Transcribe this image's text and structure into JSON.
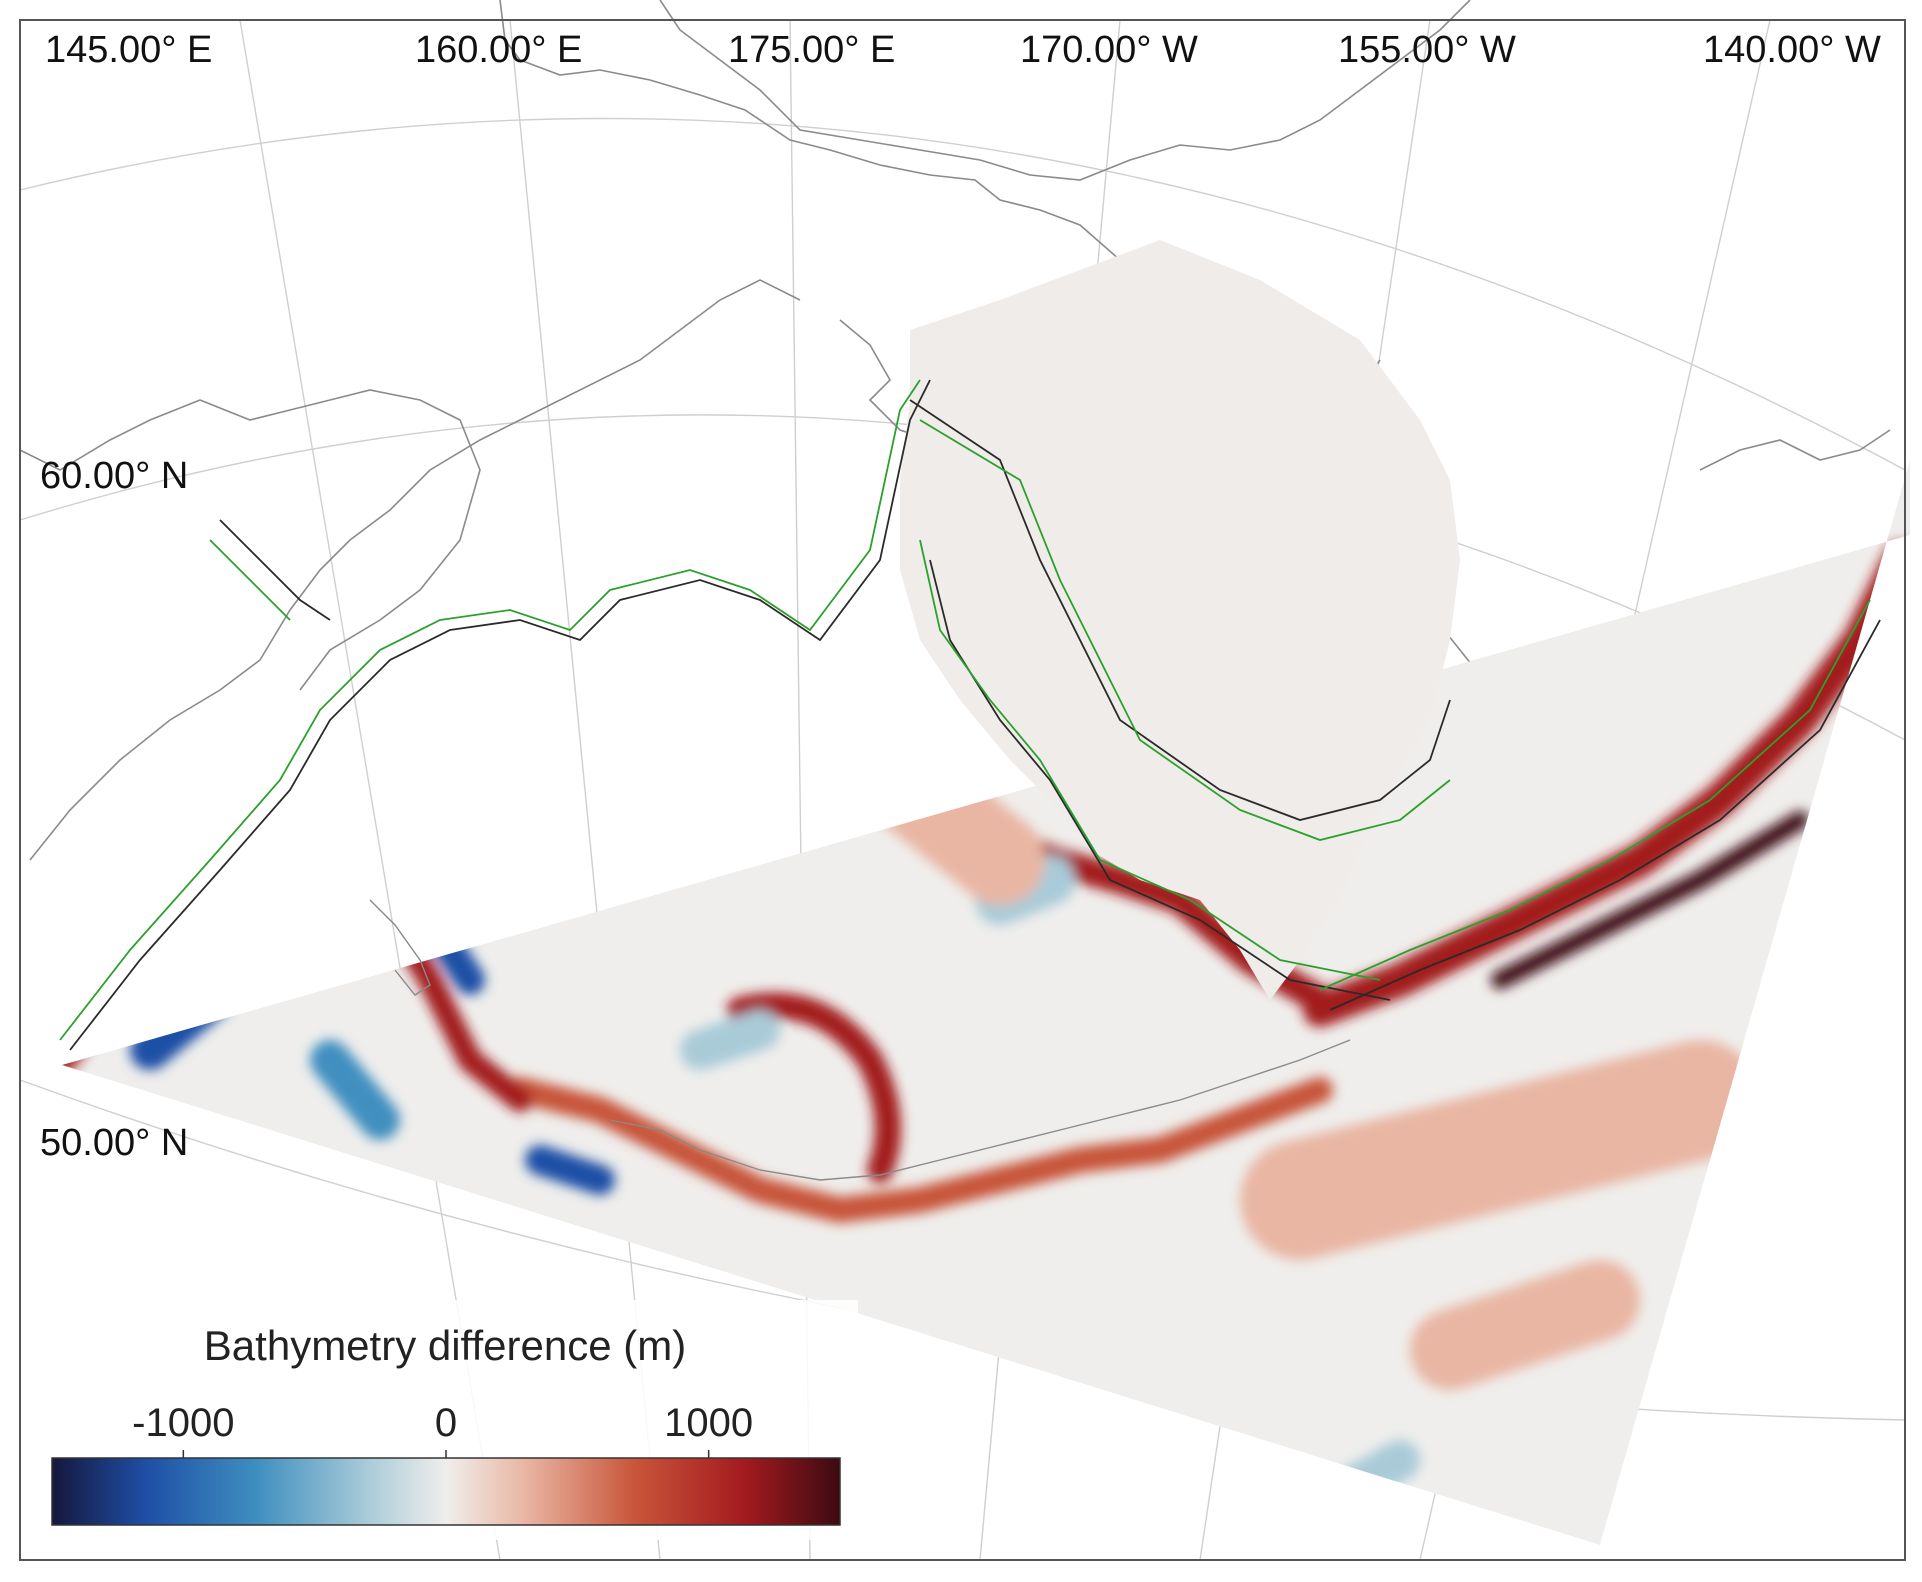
{
  "map": {
    "longitude_labels": [
      "145.00° E",
      "160.00° E",
      "175.00° E",
      "170.00° W",
      "155.00° W",
      "140.00° W"
    ],
    "latitude_labels": [
      "60.00° N",
      "50.00° N"
    ]
  },
  "colorbar": {
    "title": "Bathymetry difference (m)",
    "ticks": [
      "-1000",
      "0",
      "1000"
    ],
    "range": [
      -1500,
      1500
    ],
    "colors": {
      "neg_extreme": "#15173d",
      "neg_strong": "#1f4fa6",
      "neg_mid": "#3f8fc0",
      "neg_light": "#a9cbd8",
      "zero": "#efeeec",
      "pos_light": "#e9b6a3",
      "pos_mid": "#c8553a",
      "pos_strong": "#a31a1f",
      "pos_extreme": "#3d0a12"
    }
  },
  "colors": {
    "land_line": "#8a8a8a",
    "graticule": "#cfcfcf",
    "shelf_fill": "#efecea",
    "contour_dark": "#2a2a2a",
    "contour_green": "#2ca02c",
    "frame": "#555555"
  }
}
